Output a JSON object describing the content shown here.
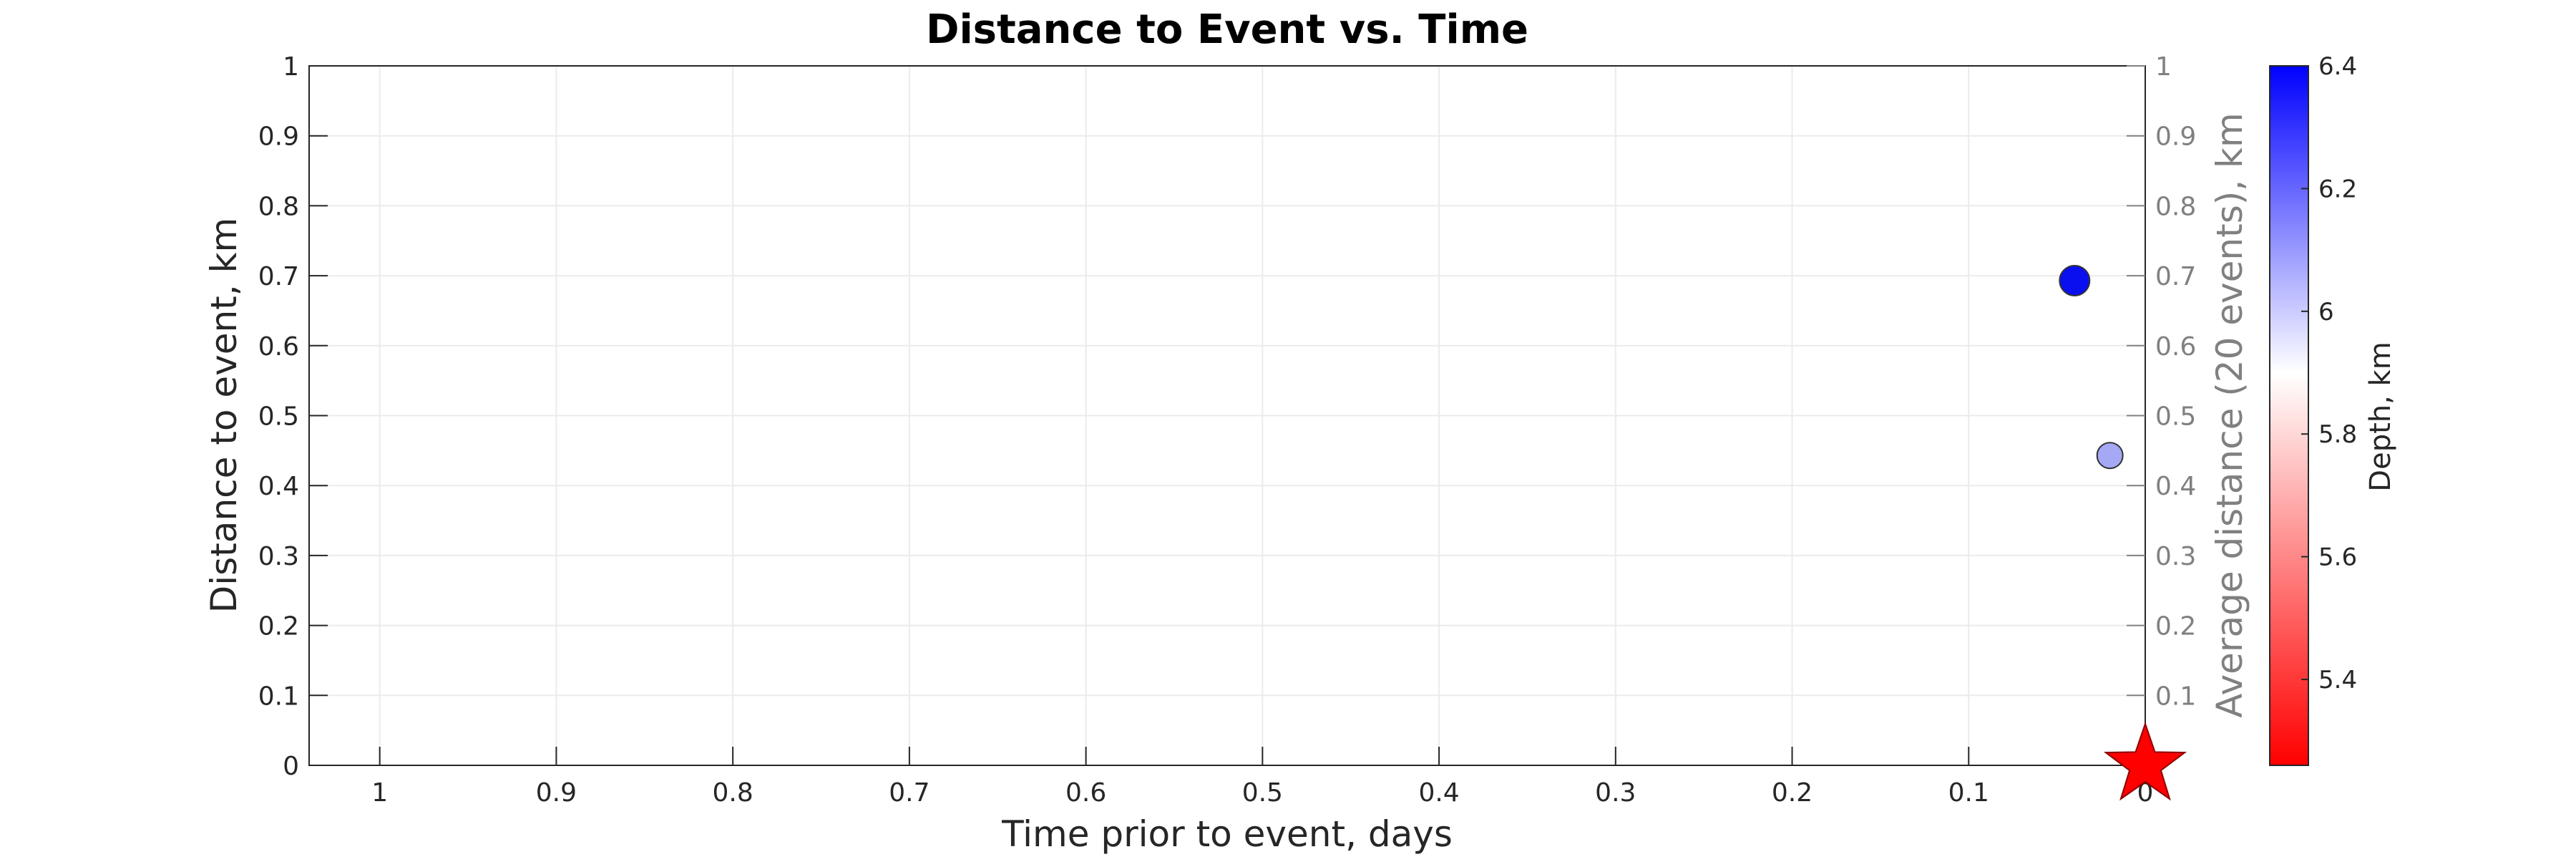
{
  "chart_data": {
    "type": "scatter",
    "title": "Distance to Event vs. Time",
    "xlabel": "Time prior to event, days",
    "ylabel": "Distance to event, km",
    "y2label": "Average distance (20 events), km",
    "xlim": [
      1.04,
      0
    ],
    "x_reversed": true,
    "ylim": [
      0,
      1
    ],
    "y2lim": [
      0,
      1
    ],
    "xticks": [
      1,
      0.9,
      0.8,
      0.7,
      0.6,
      0.5,
      0.4,
      0.3,
      0.2,
      0.1,
      0
    ],
    "yticks": [
      0,
      0.1,
      0.2,
      0.3,
      0.4,
      0.5,
      0.6,
      0.7,
      0.8,
      0.9,
      1
    ],
    "y2ticks": [
      0.1,
      0.2,
      0.3,
      0.4,
      0.5,
      0.6,
      0.7,
      0.8,
      0.9,
      1
    ],
    "grid": true,
    "points": [
      {
        "x": 0.04,
        "y": 0.693,
        "depth": 6.4,
        "color": "#0a0ff0"
      },
      {
        "x": 0.02,
        "y": 0.443,
        "depth": 6.1,
        "color": "#a4a8f5"
      }
    ],
    "event_marker": {
      "x": 0,
      "y": 0,
      "shape": "star",
      "color": "#ff0000"
    },
    "colorbar": {
      "label": "Depth, km",
      "range": [
        5.26,
        6.4
      ],
      "ticks": [
        5.4,
        5.6,
        5.8,
        6,
        6.2,
        6.4
      ],
      "colors": [
        "#ff0000",
        "#ffffff",
        "#0000ff"
      ],
      "diverging_center": 5.9
    },
    "colors": {
      "axis": "#262626",
      "right_axis": "#808080",
      "grid": "#ebebeb"
    }
  }
}
